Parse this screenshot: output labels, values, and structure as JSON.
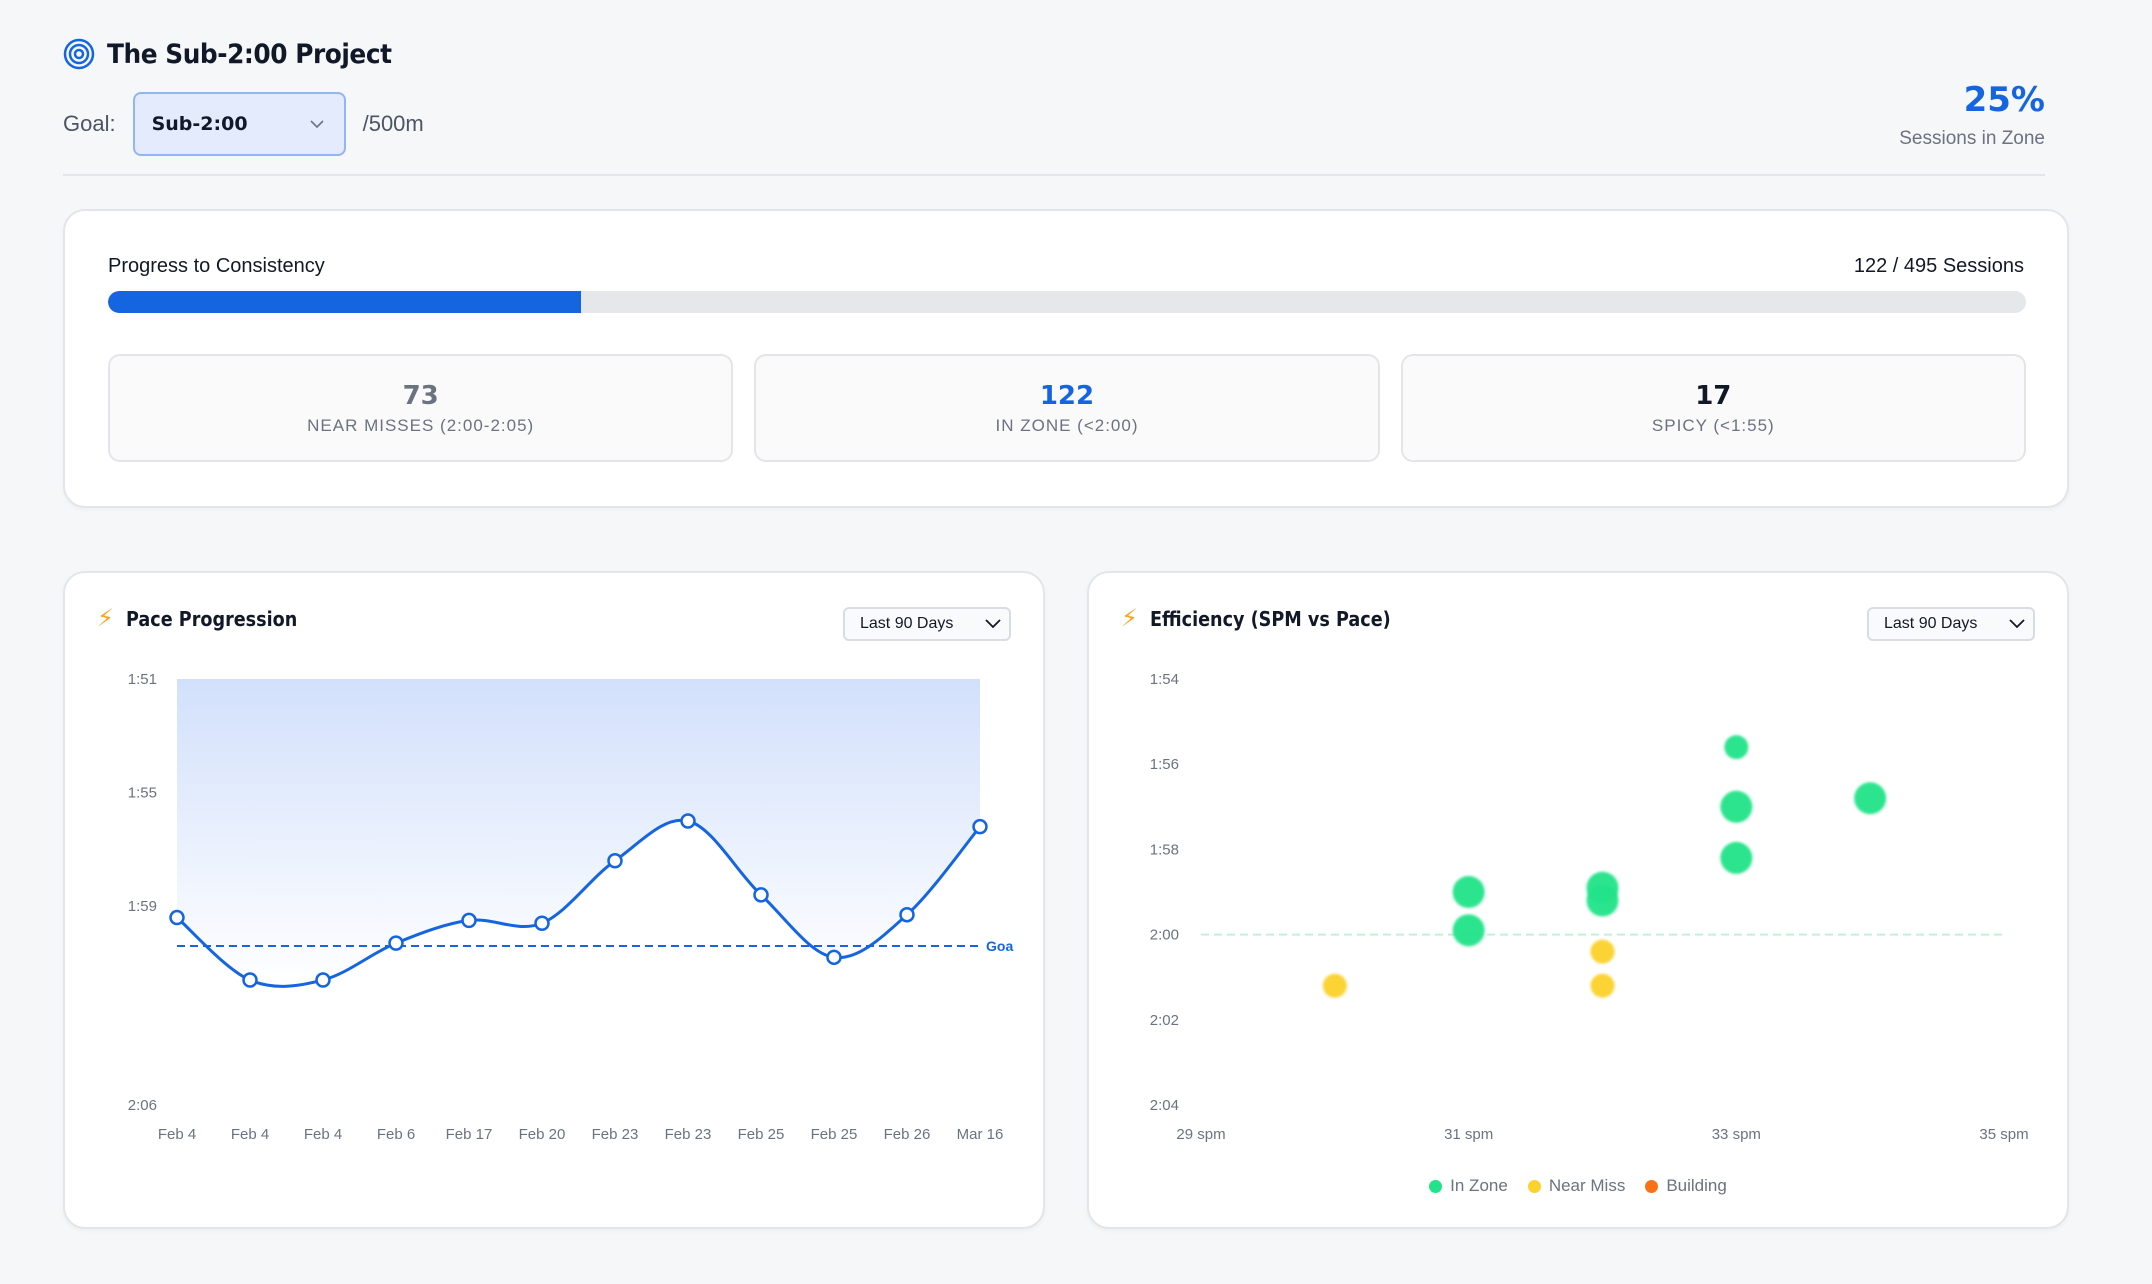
{
  "header": {
    "title": "The Sub-2:00 Project",
    "goal_label": "Goal:",
    "goal_value": "Sub-2:00",
    "goal_unit": "/500m",
    "zone_percent": "25%",
    "zone_label": "Sessions in Zone"
  },
  "progress": {
    "title": "Progress to Consistency",
    "count_text": "122 / 495 Sessions",
    "fraction": 0.2465,
    "stats": [
      {
        "value": "73",
        "label": "NEAR MISSES (2:00-2:05)",
        "color": "#6b7280"
      },
      {
        "value": "122",
        "label": "IN ZONE (<2:00)",
        "color": "#1565e0"
      },
      {
        "value": "17",
        "label": "SPICY (<1:55)",
        "color": "#111827"
      }
    ]
  },
  "pace_chart": {
    "title": "Pace Progression",
    "range": "Last 90 Days",
    "goal_label": "Goa"
  },
  "eff_chart": {
    "title": "Efficiency (SPM vs Pace)",
    "range": "Last 90 Days",
    "legend": [
      {
        "label": "In Zone",
        "color": "#22e389"
      },
      {
        "label": "Near Miss",
        "color": "#fcd12a"
      },
      {
        "label": "Building",
        "color": "#f97316"
      }
    ]
  },
  "chart_data": [
    {
      "type": "line",
      "title": "Pace Progression",
      "x": [
        "Feb 4",
        "Feb 4",
        "Feb 4",
        "Feb 6",
        "Feb 17",
        "Feb 20",
        "Feb 23",
        "Feb 23",
        "Feb 25",
        "Feb 25",
        "Feb 26",
        "Mar 16"
      ],
      "y_ticks": [
        "1:51",
        "1:55",
        "1:59",
        "2:06"
      ],
      "y_tick_seconds": [
        111,
        115,
        119,
        126
      ],
      "ylim_seconds": [
        111,
        126
      ],
      "goal_seconds": 120.4,
      "values_seconds": [
        119.4,
        121.6,
        121.6,
        120.3,
        119.5,
        119.6,
        117.4,
        116.0,
        118.6,
        120.8,
        119.3,
        116.2
      ],
      "area_fill": true
    },
    {
      "type": "scatter",
      "title": "Efficiency (SPM vs Pace)",
      "x_ticks": [
        "29 spm",
        "31 spm",
        "33 spm",
        "35 spm"
      ],
      "x_tick_values": [
        29,
        31,
        33,
        35
      ],
      "xlim": [
        29,
        35
      ],
      "y_ticks": [
        "1:54",
        "1:56",
        "1:58",
        "2:00",
        "2:02",
        "2:04"
      ],
      "y_tick_seconds": [
        114,
        116,
        118,
        120,
        122,
        124
      ],
      "ylim_seconds": [
        114,
        124
      ],
      "goal_seconds": 120,
      "points": [
        {
          "spm": 30.0,
          "pace_seconds": 121.2,
          "status": "Near Miss",
          "size": 1
        },
        {
          "spm": 31.0,
          "pace_seconds": 119.0,
          "status": "In Zone",
          "size": 2
        },
        {
          "spm": 31.0,
          "pace_seconds": 119.9,
          "status": "In Zone",
          "size": 2
        },
        {
          "spm": 32.0,
          "pace_seconds": 118.9,
          "status": "In Zone",
          "size": 2
        },
        {
          "spm": 32.0,
          "pace_seconds": 119.2,
          "status": "In Zone",
          "size": 2
        },
        {
          "spm": 32.0,
          "pace_seconds": 120.4,
          "status": "Near Miss",
          "size": 1
        },
        {
          "spm": 32.0,
          "pace_seconds": 121.2,
          "status": "Near Miss",
          "size": 1
        },
        {
          "spm": 33.0,
          "pace_seconds": 115.6,
          "status": "In Zone",
          "size": 1
        },
        {
          "spm": 33.0,
          "pace_seconds": 117.0,
          "status": "In Zone",
          "size": 2
        },
        {
          "spm": 33.0,
          "pace_seconds": 118.2,
          "status": "In Zone",
          "size": 2
        },
        {
          "spm": 34.0,
          "pace_seconds": 116.8,
          "status": "In Zone",
          "size": 2
        }
      ]
    }
  ]
}
